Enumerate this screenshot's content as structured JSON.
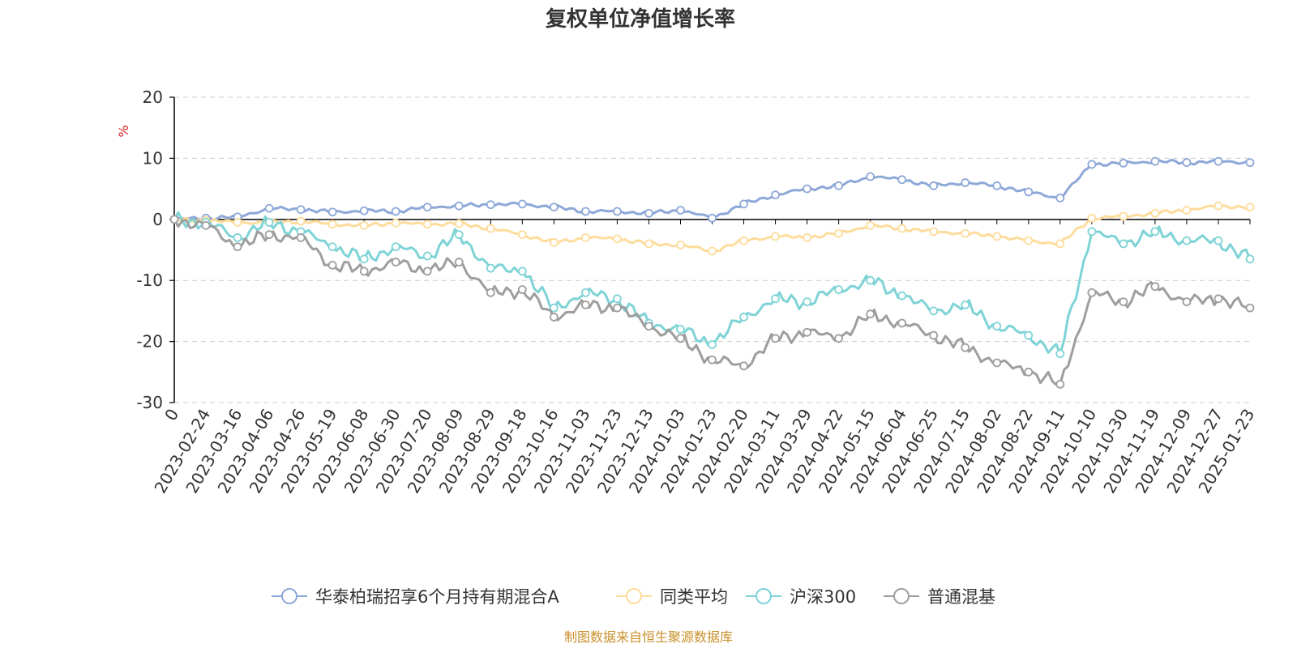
{
  "chart_data": {
    "type": "line",
    "title": "复权单位净值增长率",
    "ylabel": "%",
    "ylim": [
      -30,
      20
    ],
    "yticks": [
      "20",
      "10",
      "0",
      "-10",
      "-20",
      "-30"
    ],
    "categories": [
      "0",
      "2023-02-24",
      "2023-03-16",
      "2023-04-06",
      "2023-04-26",
      "2023-05-19",
      "2023-06-08",
      "2023-06-30",
      "2023-07-20",
      "2023-08-09",
      "2023-08-29",
      "2023-09-18",
      "2023-10-16",
      "2023-11-03",
      "2023-11-23",
      "2023-12-13",
      "2024-01-03",
      "2024-01-23",
      "2024-02-20",
      "2024-03-11",
      "2024-03-29",
      "2024-04-22",
      "2024-05-15",
      "2024-06-04",
      "2024-06-25",
      "2024-07-15",
      "2024-08-02",
      "2024-08-22",
      "2024-09-11",
      "2024-10-10",
      "2024-10-30",
      "2024-11-19",
      "2024-12-09",
      "2024-12-27",
      "2025-01-23"
    ],
    "series": [
      {
        "name": "华泰柏瑞招享6个月持有期混合A",
        "color": "#8ea8d8",
        "values": [
          0,
          0.2,
          0.4,
          1.8,
          1.6,
          1.2,
          1.4,
          1.3,
          2.0,
          2.2,
          2.4,
          2.5,
          2.0,
          1.3,
          1.3,
          1.0,
          1.5,
          0.2,
          2.5,
          4.0,
          5.0,
          5.5,
          7.0,
          6.5,
          5.5,
          6.0,
          5.5,
          4.5,
          3.5,
          9.0,
          9.2,
          9.5,
          9.3,
          9.5,
          9.3
        ]
      },
      {
        "name": "同类平均",
        "color": "#fddc9c",
        "values": [
          0,
          -0.2,
          -0.5,
          -0.5,
          -0.3,
          -0.8,
          -1.0,
          -0.6,
          -0.8,
          -0.7,
          -1.5,
          -2.5,
          -3.8,
          -3.0,
          -3.2,
          -4.0,
          -4.2,
          -5.2,
          -3.5,
          -2.8,
          -3.0,
          -2.3,
          -1.0,
          -1.5,
          -2.0,
          -2.3,
          -2.8,
          -3.5,
          -4.0,
          0.2,
          0.5,
          1.0,
          1.5,
          2.2,
          2.0
        ]
      },
      {
        "name": "沪深300",
        "color": "#7fd3d6",
        "values": [
          0,
          -0.5,
          -3.0,
          -0.5,
          -2.0,
          -4.5,
          -6.5,
          -4.5,
          -6.0,
          -2.5,
          -8.0,
          -8.5,
          -14.5,
          -12.0,
          -13.0,
          -17.0,
          -18.0,
          -20.5,
          -16.0,
          -13.0,
          -13.5,
          -11.5,
          -10.0,
          -12.5,
          -15.0,
          -14.0,
          -17.5,
          -19.0,
          -22.0,
          -2.0,
          -4.0,
          -2.0,
          -3.5,
          -3.5,
          -6.5
        ]
      },
      {
        "name": "普通混基",
        "color": "#9e9e9e",
        "values": [
          0,
          -1.0,
          -4.5,
          -2.5,
          -3.0,
          -7.5,
          -8.5,
          -7.0,
          -8.5,
          -7.0,
          -12.0,
          -11.5,
          -16.0,
          -14.0,
          -14.5,
          -17.5,
          -19.5,
          -23.0,
          -24.0,
          -19.5,
          -18.5,
          -19.5,
          -15.5,
          -17.0,
          -19.0,
          -21.0,
          -23.5,
          -25.0,
          -27.0,
          -12.0,
          -13.5,
          -11.0,
          -13.5,
          -13.0,
          -14.5
        ]
      }
    ]
  },
  "legend": {
    "items": [
      {
        "label": "华泰柏瑞招享6个月持有期混合A",
        "color": "#8ea8d8"
      },
      {
        "label": "同类平均",
        "color": "#fddc9c"
      },
      {
        "label": "沪深300",
        "color": "#7fd3d6"
      },
      {
        "label": "普通混基",
        "color": "#9e9e9e"
      }
    ]
  },
  "source": "制图数据来自恒生聚源数据库"
}
